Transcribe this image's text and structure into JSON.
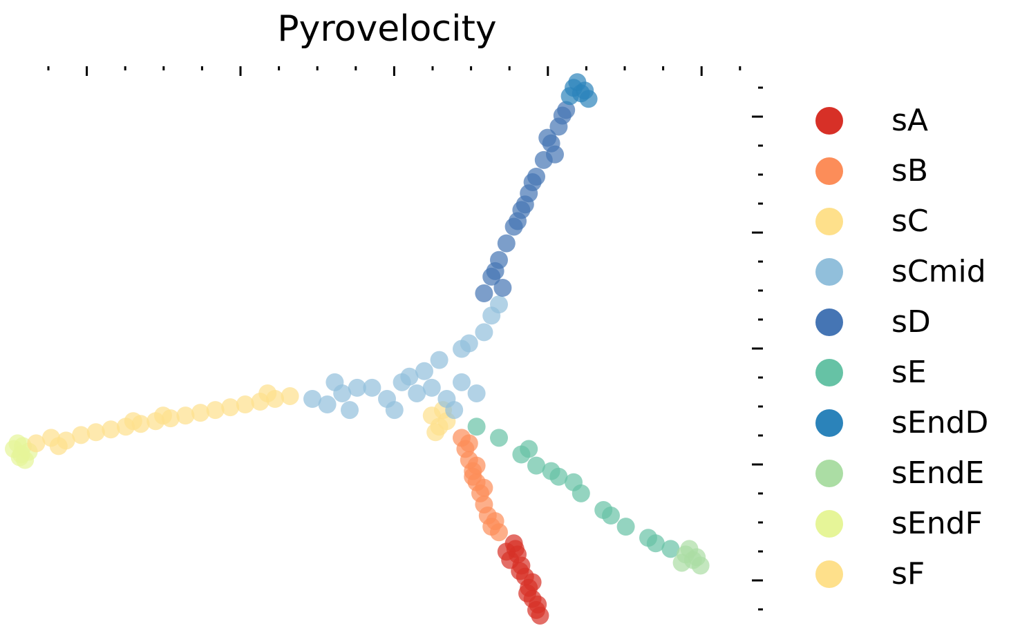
{
  "chart_data": {
    "type": "scatter",
    "title": "Pyrovelocity",
    "xlabel": "",
    "ylabel": "",
    "xlim": [
      0,
      10
    ],
    "ylim": [
      0,
      10
    ],
    "legend_position": "right",
    "series": [
      {
        "name": "sA",
        "color": "#d73027",
        "points": [
          [
            6.7,
            1.4
          ],
          [
            6.75,
            1.2
          ],
          [
            6.8,
            1.0
          ],
          [
            6.85,
            0.8
          ],
          [
            6.9,
            0.6
          ],
          [
            6.95,
            0.4
          ],
          [
            7.0,
            0.2
          ],
          [
            7.05,
            0.1
          ],
          [
            6.65,
            1.1
          ],
          [
            6.95,
            0.7
          ],
          [
            6.72,
            1.3
          ],
          [
            6.88,
            0.5
          ],
          [
            7.02,
            0.3
          ],
          [
            6.78,
            0.9
          ],
          [
            6.6,
            1.25
          ]
        ]
      },
      {
        "name": "sB",
        "color": "#fc8d59",
        "points": [
          [
            6.0,
            3.3
          ],
          [
            6.05,
            3.1
          ],
          [
            6.1,
            2.9
          ],
          [
            6.15,
            2.7
          ],
          [
            6.2,
            2.5
          ],
          [
            6.25,
            2.3
          ],
          [
            6.3,
            2.1
          ],
          [
            6.35,
            1.9
          ],
          [
            6.4,
            1.7
          ],
          [
            6.5,
            1.6
          ],
          [
            6.2,
            2.8
          ],
          [
            6.3,
            2.4
          ],
          [
            6.1,
            3.2
          ],
          [
            6.45,
            1.8
          ],
          [
            6.15,
            2.6
          ]
        ]
      },
      {
        "name": "sC",
        "color": "#fee08b",
        "points": [
          [
            5.6,
            3.7
          ],
          [
            5.7,
            3.5
          ],
          [
            5.8,
            3.6
          ],
          [
            5.65,
            3.4
          ],
          [
            5.75,
            3.8
          ]
        ]
      },
      {
        "name": "sCmid",
        "color": "#91bfdb",
        "points": [
          [
            4.0,
            4.0
          ],
          [
            4.2,
            3.9
          ],
          [
            4.4,
            4.1
          ],
          [
            4.5,
            3.8
          ],
          [
            4.8,
            4.2
          ],
          [
            5.0,
            4.0
          ],
          [
            5.2,
            4.3
          ],
          [
            5.4,
            4.1
          ],
          [
            5.6,
            4.2
          ],
          [
            5.8,
            4.0
          ],
          [
            6.0,
            4.3
          ],
          [
            6.2,
            4.1
          ],
          [
            5.5,
            4.5
          ],
          [
            5.7,
            4.7
          ],
          [
            6.0,
            4.9
          ],
          [
            6.3,
            5.2
          ],
          [
            6.4,
            5.5
          ],
          [
            6.5,
            5.7
          ],
          [
            4.3,
            4.3
          ],
          [
            5.1,
            3.8
          ],
          [
            5.9,
            3.8
          ],
          [
            4.6,
            4.2
          ],
          [
            5.3,
            4.4
          ],
          [
            6.1,
            5.0
          ]
        ]
      },
      {
        "name": "sD",
        "color": "#4575b4",
        "points": [
          [
            6.3,
            5.9
          ],
          [
            6.4,
            6.2
          ],
          [
            6.5,
            6.5
          ],
          [
            6.6,
            6.8
          ],
          [
            6.7,
            7.1
          ],
          [
            6.8,
            7.4
          ],
          [
            6.9,
            7.7
          ],
          [
            7.0,
            8.0
          ],
          [
            7.1,
            8.3
          ],
          [
            7.2,
            8.6
          ],
          [
            7.3,
            8.9
          ],
          [
            7.4,
            9.2
          ],
          [
            6.55,
            6.0
          ],
          [
            6.75,
            7.2
          ],
          [
            6.95,
            7.9
          ],
          [
            7.15,
            8.7
          ],
          [
            7.35,
            9.1
          ],
          [
            6.45,
            6.3
          ],
          [
            6.85,
            7.5
          ],
          [
            7.25,
            8.4
          ]
        ]
      },
      {
        "name": "sE",
        "color": "#66c2a5",
        "points": [
          [
            6.2,
            3.5
          ],
          [
            6.5,
            3.3
          ],
          [
            6.8,
            3.0
          ],
          [
            7.0,
            2.8
          ],
          [
            7.3,
            2.6
          ],
          [
            7.6,
            2.3
          ],
          [
            7.9,
            2.0
          ],
          [
            8.2,
            1.7
          ],
          [
            8.5,
            1.5
          ],
          [
            8.8,
            1.3
          ],
          [
            6.9,
            3.1
          ],
          [
            7.5,
            2.5
          ],
          [
            8.0,
            1.9
          ],
          [
            8.6,
            1.4
          ],
          [
            7.2,
            2.7
          ]
        ]
      },
      {
        "name": "sEndD",
        "color": "#2b83ba",
        "points": [
          [
            7.5,
            9.6
          ],
          [
            7.6,
            9.5
          ],
          [
            7.7,
            9.4
          ],
          [
            7.55,
            9.7
          ],
          [
            7.65,
            9.55
          ],
          [
            7.45,
            9.45
          ]
        ]
      },
      {
        "name": "sEndE",
        "color": "#abdda4",
        "points": [
          [
            9.0,
            1.2
          ],
          [
            9.1,
            1.1
          ],
          [
            9.05,
            1.3
          ],
          [
            9.2,
            1.0
          ],
          [
            9.15,
            1.15
          ],
          [
            8.95,
            1.05
          ]
        ]
      },
      {
        "name": "sEndF",
        "color": "#e6f598",
        "points": [
          [
            0.0,
            3.1
          ],
          [
            0.1,
            3.0
          ],
          [
            0.05,
            3.2
          ],
          [
            0.15,
            2.9
          ],
          [
            0.2,
            3.05
          ],
          [
            0.08,
            2.95
          ],
          [
            0.12,
            3.15
          ]
        ]
      },
      {
        "name": "sF",
        "color": "#fee08b",
        "points": [
          [
            0.3,
            3.2
          ],
          [
            0.5,
            3.3
          ],
          [
            0.7,
            3.25
          ],
          [
            0.9,
            3.35
          ],
          [
            1.1,
            3.4
          ],
          [
            1.3,
            3.45
          ],
          [
            1.5,
            3.5
          ],
          [
            1.7,
            3.55
          ],
          [
            1.9,
            3.6
          ],
          [
            2.1,
            3.65
          ],
          [
            2.3,
            3.7
          ],
          [
            2.5,
            3.75
          ],
          [
            2.7,
            3.8
          ],
          [
            2.9,
            3.85
          ],
          [
            3.1,
            3.9
          ],
          [
            3.3,
            3.95
          ],
          [
            3.5,
            4.0
          ],
          [
            3.7,
            4.05
          ],
          [
            2.0,
            3.7
          ],
          [
            3.4,
            4.1
          ],
          [
            0.6,
            3.15
          ],
          [
            1.6,
            3.6
          ]
        ]
      }
    ]
  }
}
